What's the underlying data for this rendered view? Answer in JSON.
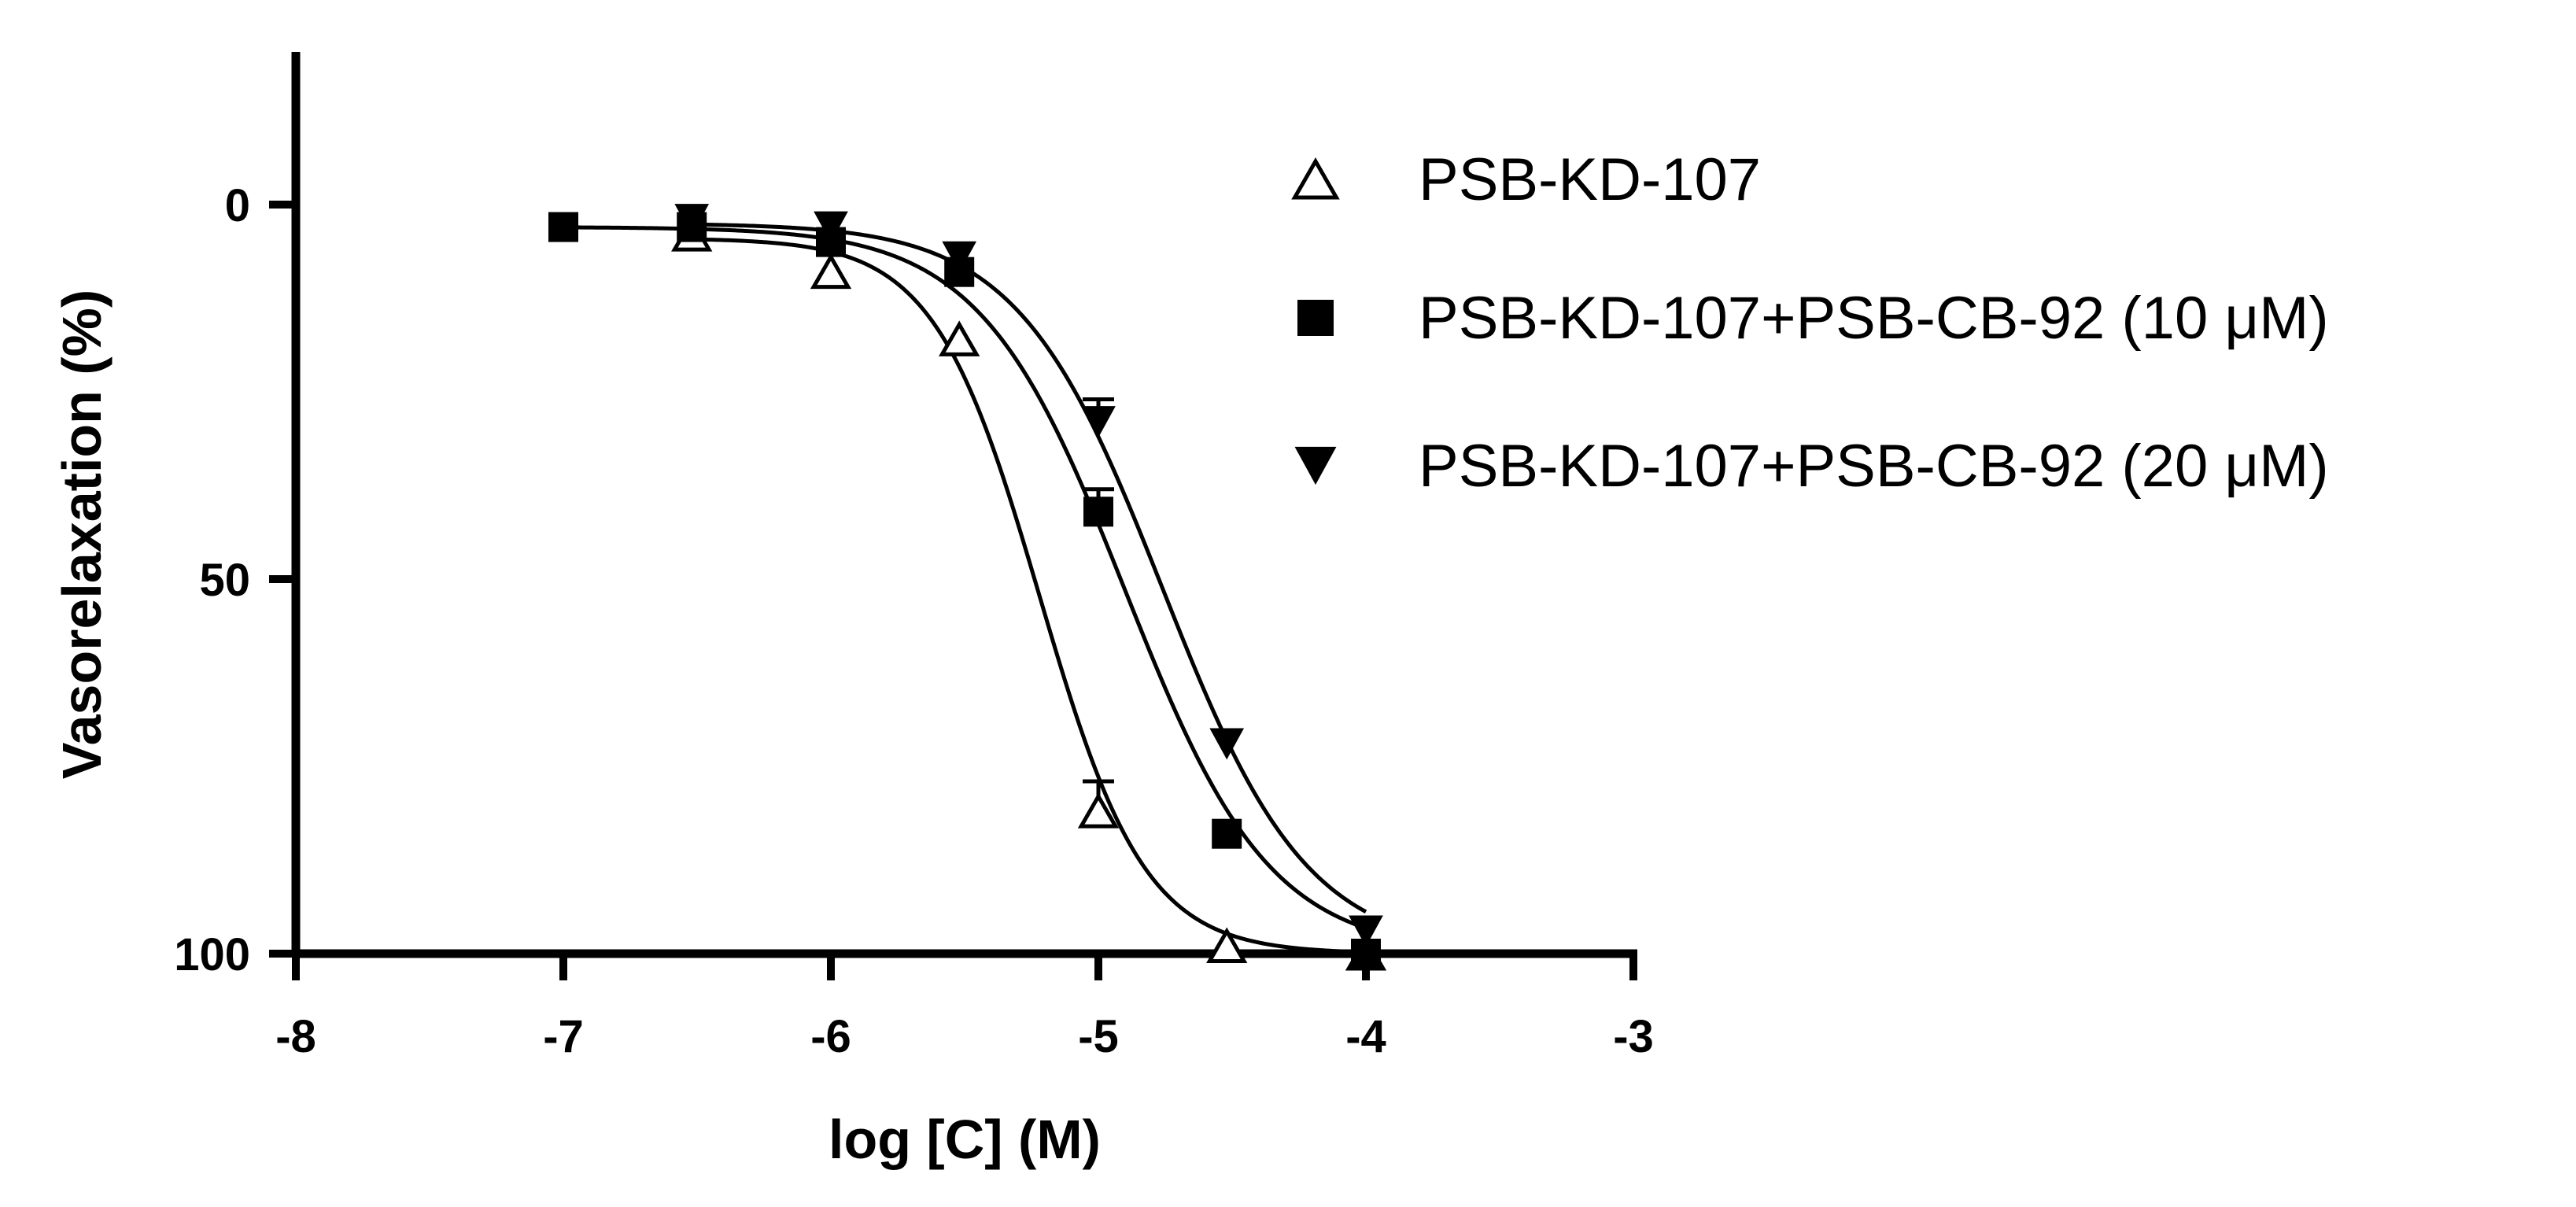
{
  "chart_data": {
    "type": "scatter",
    "title": "",
    "xlabel": "log [C] (M)",
    "ylabel": "Vasorelaxation (%)",
    "xlim": [
      -8,
      -3
    ],
    "ylim": [
      -20,
      100
    ],
    "y_inverted": true,
    "x_ticks": [
      -8,
      -7,
      -6,
      -5,
      -4,
      -3
    ],
    "x_tick_labels": [
      "-8",
      "-7",
      "-6",
      "-5",
      "-4",
      "-3"
    ],
    "y_ticks": [
      0,
      50,
      100
    ],
    "y_tick_labels": [
      "0",
      "50",
      "100"
    ],
    "grid": false,
    "legend_position": "right",
    "series": [
      {
        "name": "PSB-KD-107",
        "marker": "open-triangle-up",
        "color": "#000000",
        "x": [
          -6.52,
          -6.0,
          -5.52,
          -5.0,
          -4.52,
          -4.0
        ],
        "y": [
          4,
          9,
          18,
          81,
          99,
          100
        ],
        "error": [
          0,
          0,
          0,
          4,
          0,
          0
        ],
        "fit": {
          "bottom": 4.5,
          "top": 100,
          "logEC50": -5.22,
          "hill": 2.2
        }
      },
      {
        "name": "PSB-KD-107+PSB-CB-92 (10 μM)",
        "marker": "filled-square",
        "color": "#000000",
        "x": [
          -7.0,
          -6.52,
          -6.0,
          -5.52,
          -5.0,
          -4.52,
          -4.0
        ],
        "y": [
          3,
          3,
          5,
          9,
          41,
          84,
          100
        ],
        "error": [
          0,
          0,
          0,
          0,
          3,
          0,
          0
        ],
        "fit": {
          "bottom": 3,
          "top": 100,
          "logEC50": -4.9,
          "hill": 1.6
        }
      },
      {
        "name": "PSB-KD-107+PSB-CB-92 (20 μM)",
        "marker": "filled-triangle-down",
        "color": "#000000",
        "x": [
          -6.52,
          -6.0,
          -5.52,
          -5.0,
          -4.52,
          -4.0
        ],
        "y": [
          2,
          3,
          7,
          29,
          72,
          97
        ],
        "error": [
          0,
          0,
          0,
          3,
          0,
          0
        ],
        "fit": {
          "bottom": 2.5,
          "top": 100,
          "logEC50": -4.76,
          "hill": 1.6
        }
      }
    ]
  }
}
